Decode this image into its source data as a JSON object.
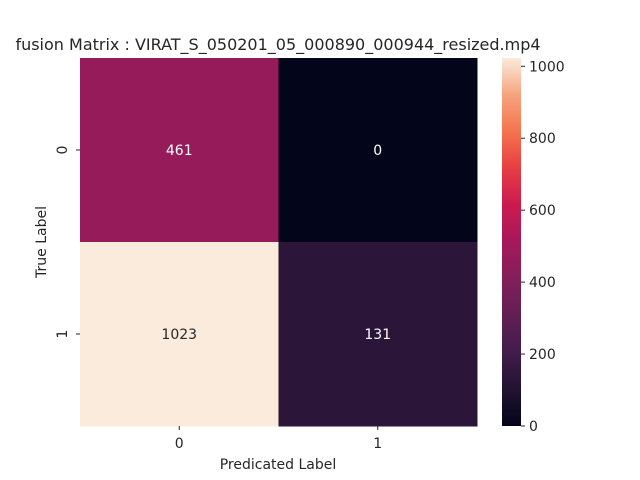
{
  "chart_data": {
    "type": "heatmap",
    "title": "fusion Matrix : VIRAT_S_050201_05_000890_000944_resized.mp4",
    "xlabel": "Predicated Label",
    "ylabel": "True Label",
    "x_categories": [
      "0",
      "1"
    ],
    "y_categories": [
      "0",
      "1"
    ],
    "values": [
      [
        461,
        0
      ],
      [
        1023,
        131
      ]
    ],
    "annotations": [
      [
        "461",
        "0"
      ],
      [
        "1023",
        "131"
      ]
    ],
    "colorbar": {
      "range": [
        0,
        1023
      ],
      "ticks": [
        0,
        200,
        400,
        600,
        800,
        1000
      ],
      "tick_labels": [
        "0",
        "200",
        "400",
        "600",
        "800",
        "1000"
      ],
      "colormap": "rocket"
    },
    "grid": false
  }
}
